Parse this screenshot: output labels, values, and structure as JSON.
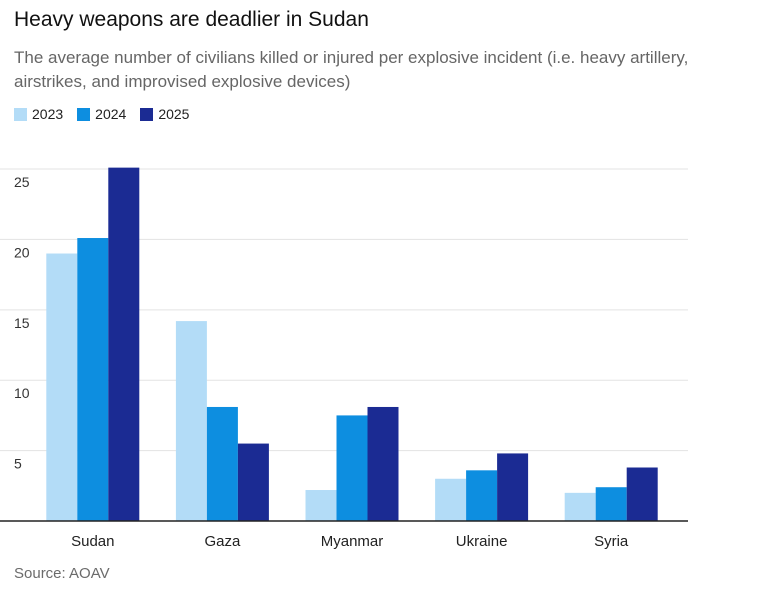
{
  "header": {
    "title": "Heavy weapons are deadlier in Sudan",
    "subtitle": "The average number of civilians killed or injured per explosive incident (i.e. heavy artillery, airstrikes, and improvised explosive devices)"
  },
  "footer": {
    "source": "Source: AOAV"
  },
  "chart_data": {
    "type": "bar",
    "title": "Heavy weapons are deadlier in Sudan",
    "subtitle": "The average number of civilians killed or injured per explosive incident (i.e. heavy artillery, airstrikes, and improvised explosive devices)",
    "categories": [
      "Sudan",
      "Gaza",
      "Myanmar",
      "Ukraine",
      "Syria"
    ],
    "series": [
      {
        "name": "2023",
        "color": "#b3dcf7",
        "values": [
          19.0,
          14.2,
          2.2,
          3.0,
          2.0
        ]
      },
      {
        "name": "2024",
        "color": "#0d8ee0",
        "values": [
          20.1,
          8.1,
          7.5,
          3.6,
          2.4
        ]
      },
      {
        "name": "2025",
        "color": "#1b2b93",
        "values": [
          25.1,
          5.5,
          8.1,
          4.8,
          3.8
        ]
      }
    ],
    "yticks": [
      "5",
      "10",
      "15",
      "20",
      "25"
    ],
    "ylim": [
      0,
      25.5
    ],
    "xlabel": "",
    "ylabel": "",
    "grid": true,
    "legend": "top-left",
    "source": "Source: AOAV"
  }
}
